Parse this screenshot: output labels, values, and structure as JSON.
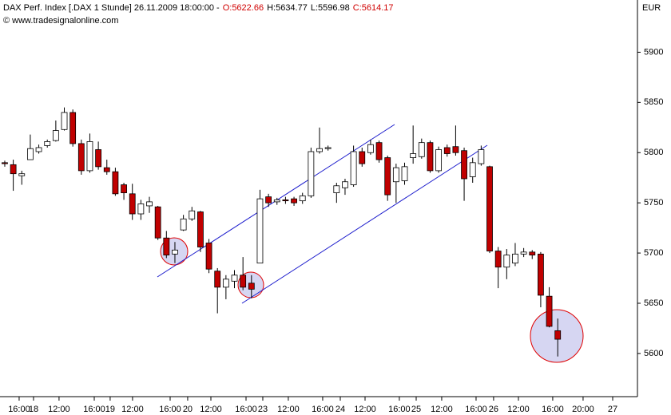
{
  "chart_data": {
    "type": "candlestick",
    "title": "DAX Perf. Index [.DAX  1 Stunde] 26.11.2009 18:00:00 -",
    "header_values": [
      {
        "text": "O:5622.66",
        "color": "#d00000"
      },
      {
        "text": "H:5634.77",
        "color": "#000000"
      },
      {
        "text": "L:5596.98",
        "color": "#000000"
      },
      {
        "text": "C:5614.17",
        "color": "#d00000"
      }
    ],
    "subtitle": "© www.tradesignalonline.com",
    "y_axis_label": "EUR",
    "up_color": "#ffffff",
    "down_color": "#c00000",
    "open": [
      5790,
      5788,
      5777,
      5793,
      5801,
      5807,
      5812,
      5823,
      5840,
      5809,
      5782,
      5803,
      5785,
      5781,
      5768,
      5759,
      5739,
      5747,
      5746,
      5715,
      5699,
      5723,
      5734,
      5741,
      5710,
      5682,
      5666,
      5672,
      5678,
      5670,
      5690,
      5756,
      5751,
      5753,
      5754,
      5752,
      5757,
      5801,
      5804,
      5760,
      5765,
      5768,
      5801,
      5800,
      5810,
      5795,
      5771,
      5772,
      5795,
      5796,
      5810,
      5782,
      5805,
      5806,
      5802,
      5776,
      5789,
      5786,
      5702,
      5686,
      5690,
      5699,
      5701,
      5699,
      5657,
      5622.66
    ],
    "high": [
      5792,
      5793,
      5782,
      5818,
      5808,
      5813,
      5832,
      5845,
      5843,
      5813,
      5819,
      5811,
      5793,
      5785,
      5770,
      5769,
      5753,
      5756,
      5747,
      5722,
      5711,
      5738,
      5746,
      5742,
      5714,
      5685,
      5678,
      5683,
      5696,
      5678,
      5763,
      5759,
      5755,
      5756,
      5756,
      5760,
      5805,
      5825,
      5807,
      5770,
      5774,
      5807,
      5805,
      5813,
      5812,
      5797,
      5789,
      5790,
      5827,
      5814,
      5812,
      5806,
      5808,
      5827,
      5805,
      5795,
      5807,
      5787,
      5706,
      5704,
      5710,
      5705,
      5703,
      5701,
      5666,
      5634.77
    ],
    "low": [
      5786,
      5762,
      5768,
      5793,
      5799,
      5805,
      5811,
      5822,
      5806,
      5778,
      5780,
      5783,
      5778,
      5757,
      5753,
      5733,
      5733,
      5740,
      5713,
      5695,
      5690,
      5722,
      5732,
      5701,
      5680,
      5640,
      5654,
      5665,
      5663,
      5655,
      5690,
      5746,
      5748,
      5749,
      5747,
      5749,
      5755,
      5799,
      5802,
      5750,
      5758,
      5766,
      5786,
      5798,
      5790,
      5752,
      5750,
      5768,
      5789,
      5794,
      5780,
      5780,
      5796,
      5797,
      5752,
      5770,
      5787,
      5700,
      5665,
      5674,
      5687,
      5696,
      5694,
      5646,
      5626,
      5596.98
    ],
    "close": [
      5789,
      5779,
      5779,
      5804,
      5805,
      5811,
      5822,
      5840,
      5809,
      5782,
      5811,
      5786,
      5781,
      5759,
      5760,
      5739,
      5749,
      5751,
      5715,
      5698,
      5703,
      5734,
      5742,
      5706,
      5684,
      5666,
      5674,
      5678,
      5666,
      5664,
      5754,
      5750,
      5753,
      5752,
      5750,
      5757,
      5801,
      5804,
      5805,
      5767,
      5771,
      5801,
      5789,
      5808,
      5793,
      5758,
      5785,
      5786,
      5799,
      5810,
      5782,
      5803,
      5799,
      5800,
      5774,
      5790,
      5803,
      5702,
      5686,
      5698,
      5699,
      5701,
      5698,
      5658,
      5627,
      5614.17
    ],
    "xlim": [
      -0.56,
      74.37
    ],
    "xticks": [
      {
        "value": 1.69,
        "label": "16:00"
      },
      {
        "value": 3.38,
        "label": "18"
      },
      {
        "value": 6.38,
        "label": "12:00"
      },
      {
        "value": 10.52,
        "label": "16:00"
      },
      {
        "value": 12.39,
        "label": "19"
      },
      {
        "value": 15.02,
        "label": "12:00"
      },
      {
        "value": 19.44,
        "label": "16:00"
      },
      {
        "value": 21.5,
        "label": "20"
      },
      {
        "value": 24.23,
        "label": "12:00"
      },
      {
        "value": 28.36,
        "label": "16:00"
      },
      {
        "value": 30.33,
        "label": "23"
      },
      {
        "value": 33.33,
        "label": "12:00"
      },
      {
        "value": 37.37,
        "label": "16:00"
      },
      {
        "value": 39.44,
        "label": "24"
      },
      {
        "value": 42.35,
        "label": "12:00"
      },
      {
        "value": 46.38,
        "label": "16:00"
      },
      {
        "value": 48.36,
        "label": "25"
      },
      {
        "value": 51.36,
        "label": "12:00"
      },
      {
        "value": 55.4,
        "label": "16:00"
      },
      {
        "value": 57.46,
        "label": "26"
      },
      {
        "value": 60.38,
        "label": "12:00"
      },
      {
        "value": 64.41,
        "label": "16:00"
      },
      {
        "value": 67.98,
        "label": "20:00"
      },
      {
        "value": 71.46,
        "label": "27"
      }
    ],
    "ylim": [
      5557,
      5952
    ],
    "yticks": [
      5600,
      5650,
      5700,
      5750,
      5800,
      5850,
      5900
    ],
    "grid": false
  }
}
